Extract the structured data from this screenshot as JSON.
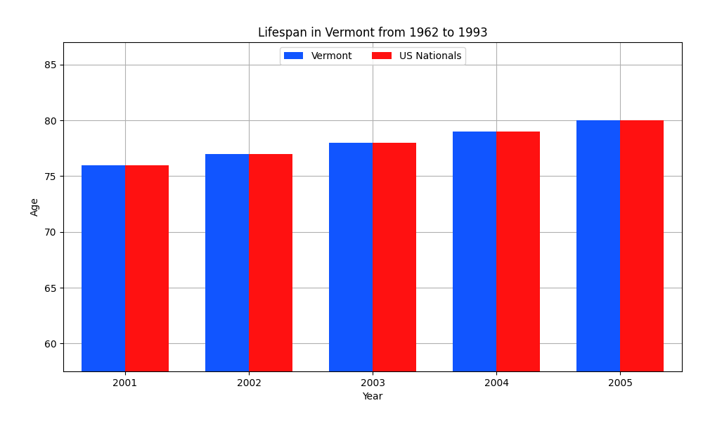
{
  "chart_data": {
    "type": "bar",
    "title": "Lifespan in Vermont from 1962 to 1993",
    "x_label": "Year",
    "y_label": "Age",
    "categories": [
      "2001",
      "2002",
      "2003",
      "2004",
      "2005"
    ],
    "series": [
      {
        "name": "Vermont",
        "color": "#1155ff",
        "values": [
          76,
          77,
          78,
          79,
          80
        ]
      },
      {
        "name": "US Nationals",
        "color": "#ff1111",
        "values": [
          76,
          77,
          78,
          79,
          80
        ]
      }
    ],
    "ylim": [
      57.5,
      87
    ],
    "yticks": [
      60,
      65,
      70,
      75,
      80,
      85
    ],
    "grid": true,
    "legend": "upper center"
  }
}
